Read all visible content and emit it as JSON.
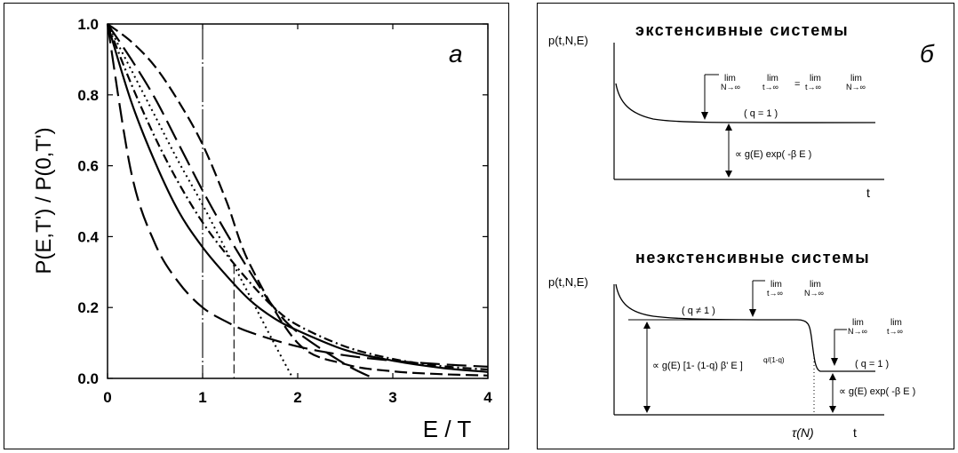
{
  "panel_a": {
    "letter": "a",
    "ylabel": "P(E,T') / P(0,T')",
    "xlabel": "E / T"
  },
  "panel_b": {
    "letter": "б",
    "top": {
      "title": "экстенсивные системы",
      "ylabel": "p(t,N,E)",
      "xlabel": "t",
      "limits_text_1": "lim",
      "limits_sub_1": "N→∞",
      "limits_text_2": "lim",
      "limits_sub_2": "t→∞",
      "equals": "=",
      "limits_text_3": "lim",
      "limits_sub_3": "t→∞",
      "limits_text_4": "lim",
      "limits_sub_4": "N→∞",
      "q_label": "( q = 1 )",
      "formula": "∝ g(E) exp( -β E )"
    },
    "bottom": {
      "title": "неэкстенсивные системы",
      "ylabel": "p(t,N,E)",
      "xlabel": "t",
      "tau_label": "τ(N)",
      "q_ne_label": "( q ≠ 1 )",
      "q_eq_label": "( q = 1 )",
      "lim1_a": "lim",
      "lim1_a_sub": "t→∞",
      "lim1_b": "lim",
      "lim1_b_sub": "N→∞",
      "lim2_a": "lim",
      "lim2_a_sub": "N→∞",
      "lim2_b": "lim",
      "lim2_b_sub": "t→∞",
      "formula_big": "∝ g(E) [1- (1-q) β' E ]",
      "formula_big_exp": "q/(1-q)",
      "formula_small": "∝ g(E) exp( -β E )"
    }
  },
  "chart_data": {
    "type": "line",
    "title": "",
    "xlabel": "E / T",
    "ylabel": "P(E,T') / P(0,T')",
    "xlim": [
      0,
      4
    ],
    "ylim": [
      0,
      1.0
    ],
    "xticks": [
      "0",
      "1",
      "2",
      "3",
      "4"
    ],
    "yticks": [
      "0.0",
      "0.2",
      "0.4",
      "0.6",
      "0.8",
      "1.0"
    ],
    "vertical_lines": [
      1.0,
      1.33
    ],
    "series": [
      {
        "style": "solid",
        "x": [
          0,
          0.25,
          0.5,
          0.75,
          1,
          1.25,
          1.5,
          1.75,
          2,
          2.5,
          3,
          3.5,
          4
        ],
        "y": [
          1.0,
          0.78,
          0.61,
          0.47,
          0.37,
          0.29,
          0.22,
          0.17,
          0.135,
          0.08,
          0.05,
          0.03,
          0.018
        ]
      },
      {
        "style": "long-dash-steep",
        "x": [
          0,
          0.25,
          0.5,
          0.75,
          1,
          1.25,
          1.5,
          2,
          2.5,
          3,
          3.5,
          4
        ],
        "y": [
          1.0,
          0.58,
          0.38,
          0.27,
          0.2,
          0.16,
          0.13,
          0.09,
          0.065,
          0.05,
          0.04,
          0.033
        ]
      },
      {
        "style": "long-dash-concave",
        "x": [
          0,
          0.25,
          0.5,
          0.75,
          1,
          1.25,
          1.5,
          1.75,
          2,
          2.5,
          2.8
        ],
        "y": [
          1.0,
          0.9,
          0.79,
          0.66,
          0.53,
          0.41,
          0.3,
          0.2,
          0.13,
          0.04,
          0.0
        ]
      },
      {
        "style": "dotted",
        "x": [
          0,
          0.25,
          0.5,
          0.75,
          1,
          1.25,
          1.5,
          1.75,
          1.95
        ],
        "y": [
          1.0,
          0.87,
          0.74,
          0.61,
          0.49,
          0.36,
          0.23,
          0.1,
          0.0
        ]
      },
      {
        "style": "dash-dot",
        "x": [
          0,
          0.25,
          0.5,
          0.75,
          1,
          1.25,
          1.5,
          1.75,
          2,
          2.5,
          3,
          3.5,
          4
        ],
        "y": [
          1.0,
          0.83,
          0.68,
          0.55,
          0.44,
          0.35,
          0.27,
          0.2,
          0.15,
          0.09,
          0.055,
          0.035,
          0.025
        ]
      },
      {
        "style": "dashed-medium",
        "x": [
          0,
          0.25,
          0.5,
          0.75,
          1,
          1.25,
          1.5,
          2,
          2.5,
          3,
          3.5,
          4
        ],
        "y": [
          1.0,
          0.95,
          0.88,
          0.78,
          0.66,
          0.5,
          0.32,
          0.1,
          0.04,
          0.02,
          0.012,
          0.008
        ]
      }
    ]
  }
}
